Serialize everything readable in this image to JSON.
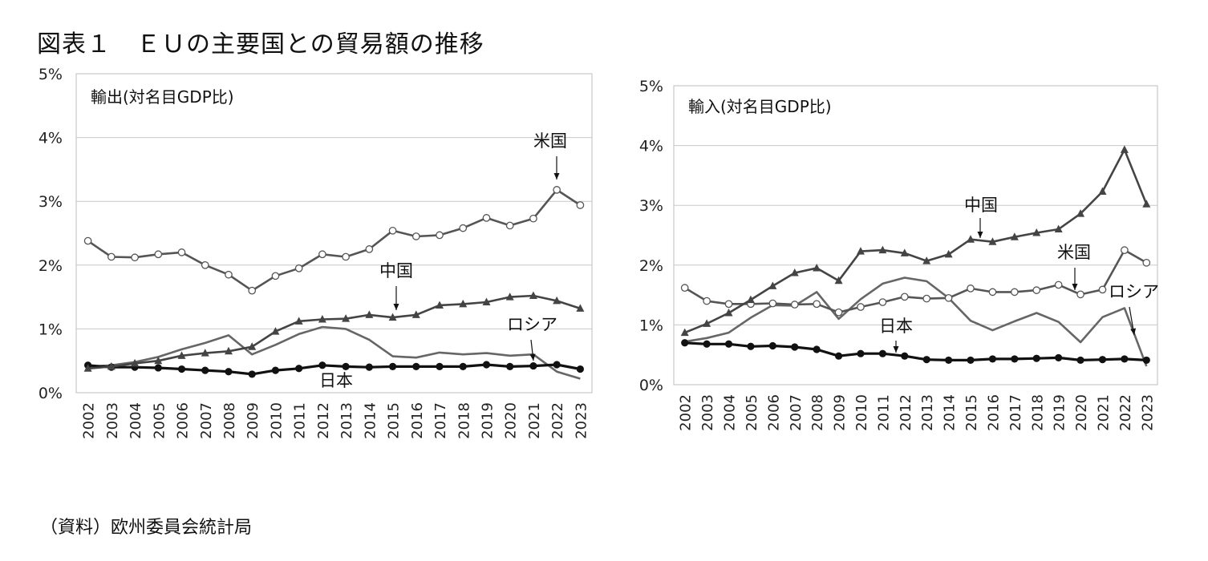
{
  "title": "図表１　ＥＵの主要国との貿易額の推移",
  "source": "（資料）欧州委員会統計局",
  "chart_data": [
    {
      "type": "line",
      "title": "輸出(対名目GDP比)",
      "ylim": [
        0,
        5
      ],
      "y_ticks": [
        "0%",
        "1%",
        "2%",
        "3%",
        "4%",
        "5%"
      ],
      "categories": [
        "2002",
        "2003",
        "2004",
        "2005",
        "2006",
        "2007",
        "2008",
        "2009",
        "2010",
        "2011",
        "2012",
        "2013",
        "2014",
        "2015",
        "2016",
        "2017",
        "2018",
        "2019",
        "2020",
        "2021",
        "2022",
        "2023"
      ],
      "grid": true,
      "series": [
        {
          "name": "米国",
          "marker": "open-circle",
          "color": "#555555",
          "values": [
            2.38,
            2.13,
            2.12,
            2.17,
            2.2,
            2.0,
            1.85,
            1.6,
            1.83,
            1.95,
            2.17,
            2.13,
            2.25,
            2.54,
            2.45,
            2.47,
            2.58,
            2.74,
            2.62,
            2.73,
            3.18,
            2.94
          ]
        },
        {
          "name": "中国",
          "marker": "triangle",
          "color": "#444444",
          "values": [
            0.38,
            0.41,
            0.46,
            0.5,
            0.58,
            0.62,
            0.65,
            0.72,
            0.96,
            1.12,
            1.15,
            1.16,
            1.22,
            1.18,
            1.22,
            1.37,
            1.39,
            1.42,
            1.5,
            1.52,
            1.44,
            1.32
          ]
        },
        {
          "name": "ロシア",
          "marker": "none",
          "color": "#666666",
          "values": [
            0.41,
            0.43,
            0.48,
            0.56,
            0.68,
            0.78,
            0.9,
            0.6,
            0.75,
            0.92,
            1.03,
            1.0,
            0.83,
            0.57,
            0.55,
            0.63,
            0.6,
            0.62,
            0.58,
            0.6,
            0.33,
            0.22
          ]
        },
        {
          "name": "日本",
          "marker": "filled-circle",
          "color": "#111111",
          "values": [
            0.43,
            0.4,
            0.4,
            0.39,
            0.37,
            0.35,
            0.33,
            0.29,
            0.35,
            0.38,
            0.43,
            0.41,
            0.4,
            0.41,
            0.41,
            0.41,
            0.41,
            0.44,
            0.41,
            0.42,
            0.44,
            0.37
          ]
        }
      ],
      "annotations": [
        "米国",
        "中国",
        "ロシア",
        "日本"
      ]
    },
    {
      "type": "line",
      "title": "輸入(対名目GDP比)",
      "ylim": [
        0,
        5
      ],
      "y_ticks": [
        "0%",
        "1%",
        "2%",
        "3%",
        "4%",
        "5%"
      ],
      "categories": [
        "2002",
        "2003",
        "2004",
        "2005",
        "2006",
        "2007",
        "2008",
        "2009",
        "2010",
        "2011",
        "2012",
        "2013",
        "2014",
        "2015",
        "2016",
        "2017",
        "2018",
        "2019",
        "2020",
        "2021",
        "2022",
        "2023"
      ],
      "grid": true,
      "series": [
        {
          "name": "中国",
          "marker": "triangle",
          "color": "#444444",
          "values": [
            0.87,
            1.02,
            1.2,
            1.42,
            1.65,
            1.87,
            1.95,
            1.74,
            2.23,
            2.25,
            2.2,
            2.07,
            2.18,
            2.43,
            2.39,
            2.47,
            2.54,
            2.6,
            2.86,
            3.23,
            3.93,
            3.02
          ]
        },
        {
          "name": "米国",
          "marker": "open-circle",
          "color": "#555555",
          "values": [
            1.62,
            1.4,
            1.35,
            1.35,
            1.36,
            1.34,
            1.35,
            1.21,
            1.3,
            1.38,
            1.47,
            1.44,
            1.45,
            1.61,
            1.55,
            1.55,
            1.58,
            1.67,
            1.51,
            1.59,
            2.25,
            2.04
          ]
        },
        {
          "name": "ロシア",
          "marker": "none",
          "color": "#666666",
          "values": [
            0.72,
            0.78,
            0.87,
            1.12,
            1.33,
            1.32,
            1.55,
            1.1,
            1.43,
            1.69,
            1.79,
            1.73,
            1.45,
            1.07,
            0.91,
            1.06,
            1.2,
            1.05,
            0.71,
            1.13,
            1.28,
            0.31
          ]
        },
        {
          "name": "日本",
          "marker": "filled-circle",
          "color": "#111111",
          "values": [
            0.7,
            0.68,
            0.68,
            0.64,
            0.65,
            0.63,
            0.59,
            0.48,
            0.52,
            0.52,
            0.48,
            0.42,
            0.41,
            0.41,
            0.43,
            0.43,
            0.44,
            0.45,
            0.41,
            0.42,
            0.43,
            0.41
          ]
        }
      ],
      "annotations": [
        "中国",
        "米国",
        "ロシア",
        "日本"
      ]
    }
  ]
}
